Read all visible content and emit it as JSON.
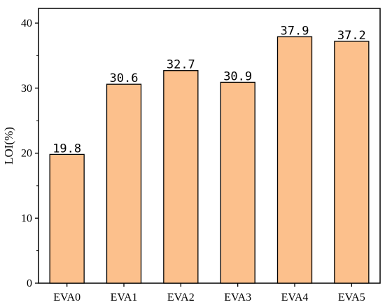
{
  "chart_data": {
    "type": "bar",
    "categories": [
      "EVA0",
      "EVA1",
      "EVA2",
      "EVA3",
      "EVA4",
      "EVA5"
    ],
    "values": [
      19.8,
      30.6,
      32.7,
      30.9,
      37.9,
      37.2
    ],
    "data_labels": [
      "19.8",
      "30.6",
      "32.7",
      "30.9",
      "37.9",
      "37.2"
    ],
    "title": "",
    "xlabel": "",
    "ylabel": "LOI(%)",
    "ylim": [
      0,
      40
    ],
    "yticks": [
      0,
      10,
      20,
      30,
      40
    ],
    "grid": false,
    "bar_color": "#fcc08c",
    "bar_edge_color": "#000000"
  }
}
